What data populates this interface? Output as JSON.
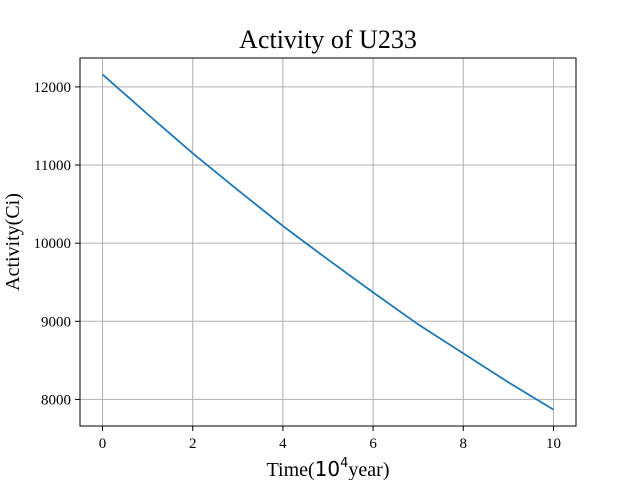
{
  "chart_data": {
    "type": "line",
    "title": "Activity of U233",
    "xlabel": {
      "prefix": "Time(",
      "unit_base": "10",
      "unit_exp": "4",
      "suffix": "year)"
    },
    "ylabel": "Activity(Ci)",
    "xlim": [
      -0.5,
      10.5
    ],
    "ylim": [
      7660,
      12370
    ],
    "x_ticks": [
      0,
      2,
      4,
      6,
      8,
      10
    ],
    "y_ticks": [
      8000,
      9000,
      10000,
      11000,
      12000
    ],
    "grid": true,
    "series": [
      {
        "color": "#1f77b4",
        "x": [
          0,
          1,
          2,
          3,
          4,
          5,
          6,
          7,
          8,
          9,
          10
        ],
        "y": [
          12160,
          11650,
          11150,
          10680,
          10220,
          9790,
          9370,
          8960,
          8590,
          8220,
          7870
        ]
      }
    ]
  }
}
